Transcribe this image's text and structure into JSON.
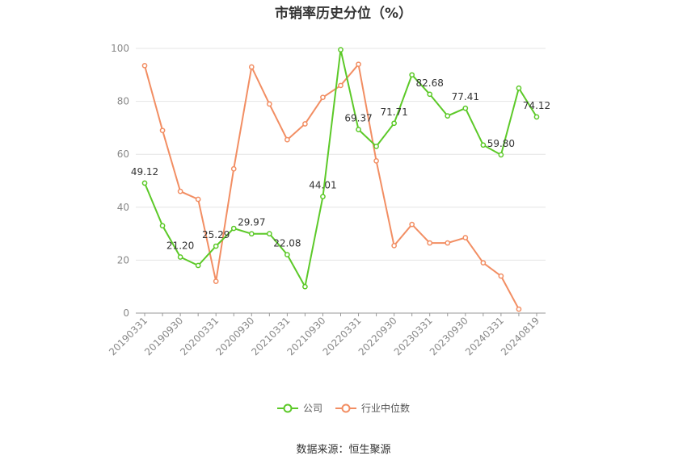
{
  "chart_data": {
    "type": "line",
    "title": "市销率历史分位（%）",
    "x_tick_labels": [
      "20190331",
      "20190930",
      "20200331",
      "20200930",
      "20210331",
      "20210930",
      "20220331",
      "20220930",
      "20230331",
      "20230930",
      "20240331",
      "20240819"
    ],
    "ylim": [
      0,
      100
    ],
    "y_ticks": [
      0,
      20,
      40,
      60,
      80,
      100
    ],
    "grid": true,
    "legend_position": "bottom",
    "series": [
      {
        "name": "公司",
        "color": "#5cc928",
        "values": [
          49.12,
          33,
          21.2,
          18,
          25.29,
          32,
          29.97,
          30,
          22.08,
          10,
          44.01,
          99.5,
          69.37,
          63,
          71.71,
          90,
          82.68,
          74.5,
          77.41,
          63.5,
          59.8,
          85,
          74.12
        ],
        "data_labels": [
          "49.12",
          "",
          "21.20",
          "",
          "25.29",
          "",
          "29.97",
          "",
          "22.08",
          "",
          "44.01",
          "",
          "69.37",
          "",
          "71.71",
          "",
          "82.68",
          "",
          "77.41",
          "",
          "59.80",
          "",
          "74.12"
        ]
      },
      {
        "name": "行业中位数",
        "color": "#f28e63",
        "values": [
          93.5,
          69,
          46,
          43,
          12,
          54.5,
          93,
          79,
          65.5,
          71.5,
          81.5,
          86,
          94,
          57.5,
          25.5,
          33.5,
          26.5,
          26.5,
          28.5,
          19,
          14,
          1.5,
          null
        ]
      }
    ]
  },
  "source_text": "数据来源：恒生聚源"
}
